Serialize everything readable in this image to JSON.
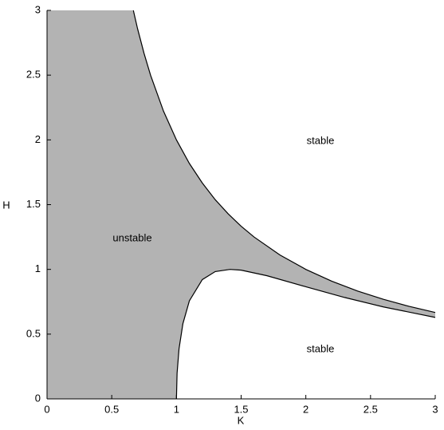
{
  "chart_data": {
    "type": "region",
    "x_label": "K",
    "y_label": "H",
    "xlim": [
      0,
      3
    ],
    "ylim": [
      0,
      3
    ],
    "xticks": [
      0,
      0.5,
      1,
      1.5,
      2,
      2.5,
      3
    ],
    "yticks": [
      0,
      0.5,
      1,
      1.5,
      2,
      2.5,
      3
    ],
    "fill_color": "#b3b3b3",
    "line_color": "#000000",
    "grid": false,
    "series": [
      {
        "name": "upper boundary",
        "x": [
          0.667,
          0.7,
          0.75,
          0.8,
          0.9,
          1,
          1.1,
          1.2,
          1.3,
          1.4,
          1.5,
          1.6,
          1.8,
          2,
          2.2,
          2.4,
          2.6,
          2.8,
          3
        ],
        "values": [
          3.0,
          2.857,
          2.667,
          2.5,
          2.222,
          2,
          1.818,
          1.667,
          1.538,
          1.429,
          1.333,
          1.25,
          1.111,
          1,
          0.909,
          0.833,
          0.769,
          0.714,
          0.667
        ]
      },
      {
        "name": "lower boundary",
        "x": [
          1,
          1.005,
          1.02,
          1.05,
          1.1,
          1.2,
          1.3,
          1.414,
          1.5,
          1.7,
          2,
          2.3,
          2.6,
          3
        ],
        "values": [
          0,
          0.198,
          0.386,
          0.581,
          0.757,
          0.921,
          0.983,
          1.0,
          0.994,
          0.951,
          0.866,
          0.783,
          0.71,
          0.629
        ]
      }
    ],
    "annotations": [
      "unstable",
      "stable",
      "stable"
    ]
  }
}
